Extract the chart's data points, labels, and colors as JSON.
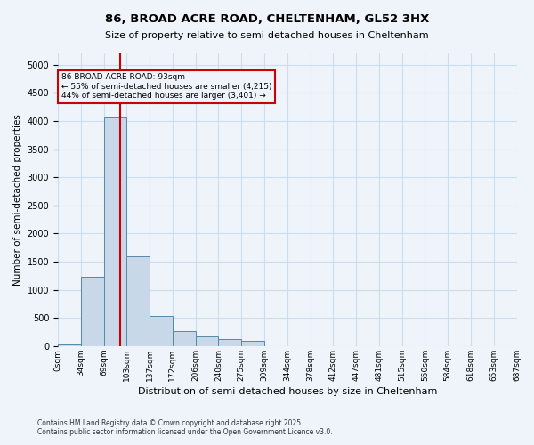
{
  "title_line1": "86, BROAD ACRE ROAD, CHELTENHAM, GL52 3HX",
  "title_line2": "Size of property relative to semi-detached houses in Cheltenham",
  "xlabel": "Distribution of semi-detached houses by size in Cheltenham",
  "ylabel": "Number of semi-detached properties",
  "footnote": "Contains HM Land Registry data © Crown copyright and database right 2025.\nContains public sector information licensed under the Open Government Licence v3.0.",
  "bin_labels": [
    "0sqm",
    "34sqm",
    "69sqm",
    "103sqm",
    "137sqm",
    "172sqm",
    "206sqm",
    "240sqm",
    "275sqm",
    "309sqm",
    "344sqm",
    "378sqm",
    "412sqm",
    "447sqm",
    "481sqm",
    "515sqm",
    "550sqm",
    "584sqm",
    "618sqm",
    "653sqm",
    "687sqm"
  ],
  "bar_values": [
    30,
    1230,
    4060,
    1600,
    530,
    270,
    170,
    120,
    95,
    0,
    0,
    0,
    0,
    0,
    0,
    0,
    0,
    0,
    0,
    0
  ],
  "bar_color": "#c8d8e8",
  "bar_edge_color": "#5588aa",
  "grid_color": "#ccddee",
  "bg_color": "#eef4fa",
  "property_value": 93,
  "red_line_color": "#cc0000",
  "annotation_text": "86 BROAD ACRE ROAD: 93sqm\n← 55% of semi-detached houses are smaller (4,215)\n44% of semi-detached houses are larger (3,401) →",
  "annotation_box_color": "#cc0000",
  "ylim": [
    0,
    5200
  ],
  "yticks": [
    0,
    500,
    1000,
    1500,
    2000,
    2500,
    3000,
    3500,
    4000,
    4500,
    5000
  ]
}
